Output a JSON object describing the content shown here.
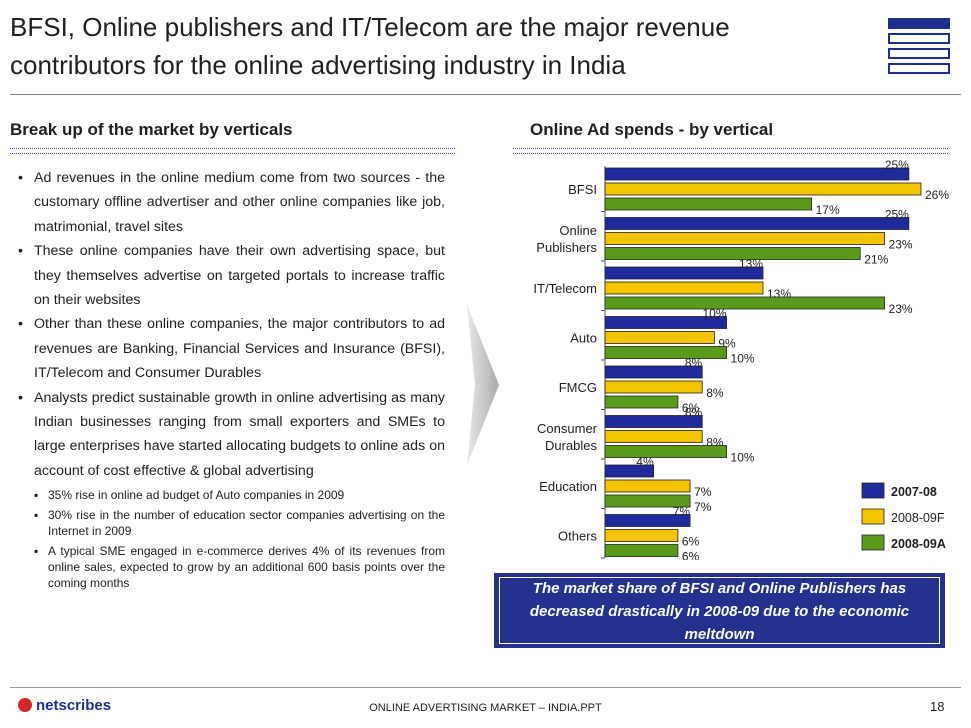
{
  "title": "BFSI, Online publishers and IT/Telecom are the major revenue contributors for the online advertising industry in India",
  "left_heading": "Break up of the market by verticals",
  "right_heading": "Online Ad spends - by vertical",
  "bullets": [
    "Ad revenues in the online medium come from two sources - the customary offline advertiser and other online companies like job, matrimonial, travel sites",
    "These online companies have their own advertising space, but they themselves advertise on targeted portals to increase traffic on their websites",
    "Other than these online companies, the major contributors to ad revenues are Banking, Financial Services and Insurance (BFSI), IT/Telecom and Consumer Durables",
    "Analysts predict sustainable growth in online advertising as many Indian businesses ranging from small exporters and SMEs to large enterprises have started allocating budgets to online ads on account of cost effective & global advertising"
  ],
  "sub_bullets": [
    "35% rise in online ad budget of Auto companies in 2009",
    "30% rise in the number of education sector companies advertising on the Internet in 2009",
    "A typical SME engaged in e-commerce derives 4% of its revenues from online sales, expected to grow by an additional 600 basis points over the coming months"
  ],
  "callout": "The market share of BFSI and Online Publishers has decreased drastically in 2008-09 due to the economic meltdown",
  "footer": {
    "logo_text": "netscribes",
    "center": "ONLINE ADVERTISING MARKET – INDIA.PPT",
    "page": "18"
  },
  "colors": {
    "series_2007_08": "#1f2a9c",
    "series_2008_09F": "#f3c400",
    "series_2008_09A": "#5a9a1a",
    "accent_navy": "#24318f"
  },
  "chart_data": {
    "type": "bar",
    "orientation": "horizontal",
    "title": "Online Ad spends - by vertical",
    "categories": [
      [
        "BFSI"
      ],
      [
        "Online",
        "Publishers"
      ],
      [
        "IT/Telecom"
      ],
      [
        "Auto"
      ],
      [
        "FMCG"
      ],
      [
        "Consumer",
        "Durables"
      ],
      [
        "Education"
      ],
      [
        "Others"
      ]
    ],
    "series": [
      {
        "name": "2007-08",
        "color": "#1f2a9c",
        "values": [
          25,
          25,
          13,
          10,
          8,
          8,
          4,
          7
        ]
      },
      {
        "name": "2008-09F",
        "color": "#f3c400",
        "values": [
          26,
          23,
          13,
          9,
          8,
          8,
          7,
          6
        ]
      },
      {
        "name": "2008-09A",
        "color": "#5a9a1a",
        "values": [
          17,
          21,
          23,
          10,
          6,
          10,
          7,
          6
        ]
      }
    ],
    "value_suffix": "%",
    "xlim": [
      0,
      26
    ],
    "grid": false,
    "legend_position": "bottom-right"
  }
}
